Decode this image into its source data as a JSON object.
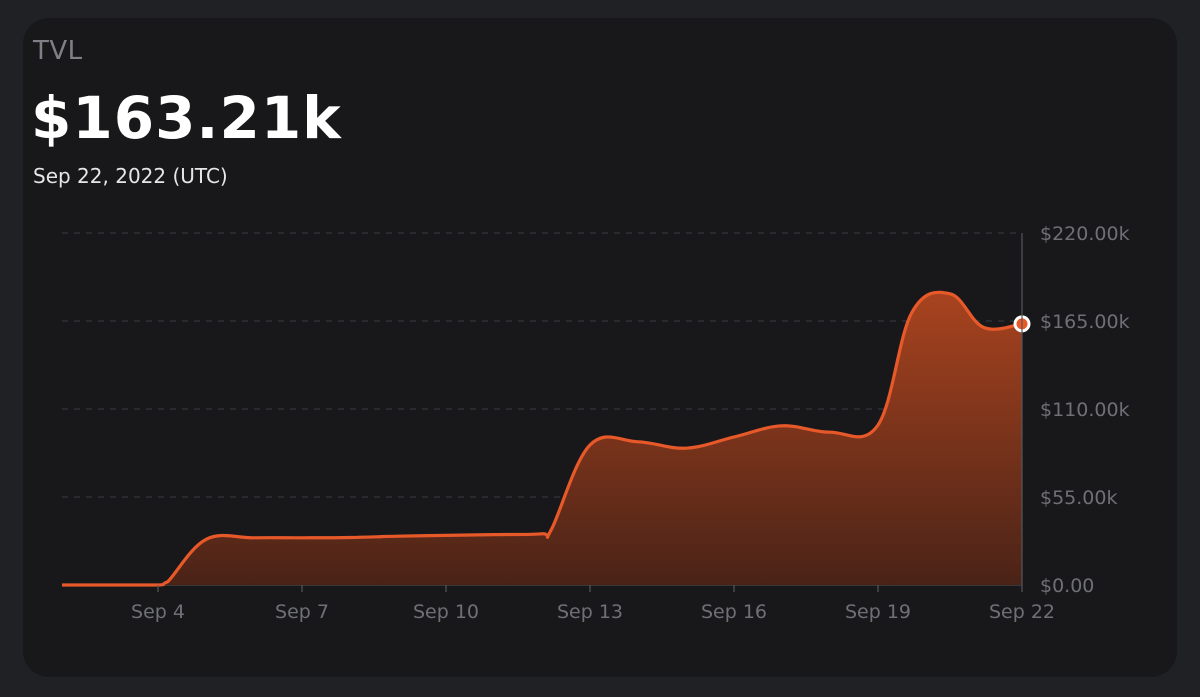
{
  "header": {
    "label": "TVL",
    "value": "$163.21k",
    "date": "Sep 22, 2022 (UTC)"
  },
  "colors": {
    "background": "#202124",
    "card": "#18181b",
    "line": "#e8592a",
    "area_top": "#a8431f",
    "area_bottom": "#4a2317",
    "grid": "#3a3b3f",
    "tick": "#6f7076"
  },
  "chart_data": {
    "type": "area",
    "title": "TVL",
    "xlabel": "",
    "ylabel": "",
    "x_ticks": [
      "Sep 4",
      "Sep 7",
      "Sep 10",
      "Sep 13",
      "Sep 16",
      "Sep 19",
      "Sep 22"
    ],
    "x_tick_days": [
      4,
      7,
      10,
      13,
      16,
      19,
      22
    ],
    "y_ticks": [
      "$0.00",
      "$55.00k",
      "$110.00k",
      "$165.00k",
      "$220.00k"
    ],
    "y_tick_values": [
      0,
      55000,
      110000,
      165000,
      220000
    ],
    "ylim": [
      0,
      220000
    ],
    "xlim": [
      2,
      22
    ],
    "grid": true,
    "series": [
      {
        "x": [
          2,
          3,
          4,
          4.2,
          5,
          6,
          7,
          8,
          9,
          10,
          11,
          12,
          12.2,
          13,
          14,
          15,
          16,
          17,
          18,
          19,
          19.7,
          20.5,
          21.2,
          22
        ],
        "y": [
          0,
          0,
          0,
          2000,
          28500,
          29500,
          29500,
          29700,
          30500,
          31000,
          31500,
          32000,
          35000,
          87500,
          89500,
          85500,
          92500,
          99500,
          95500,
          100000,
          170000,
          182000,
          161000,
          163210
        ]
      }
    ],
    "highlight": {
      "x": 22,
      "y": 163210
    }
  }
}
